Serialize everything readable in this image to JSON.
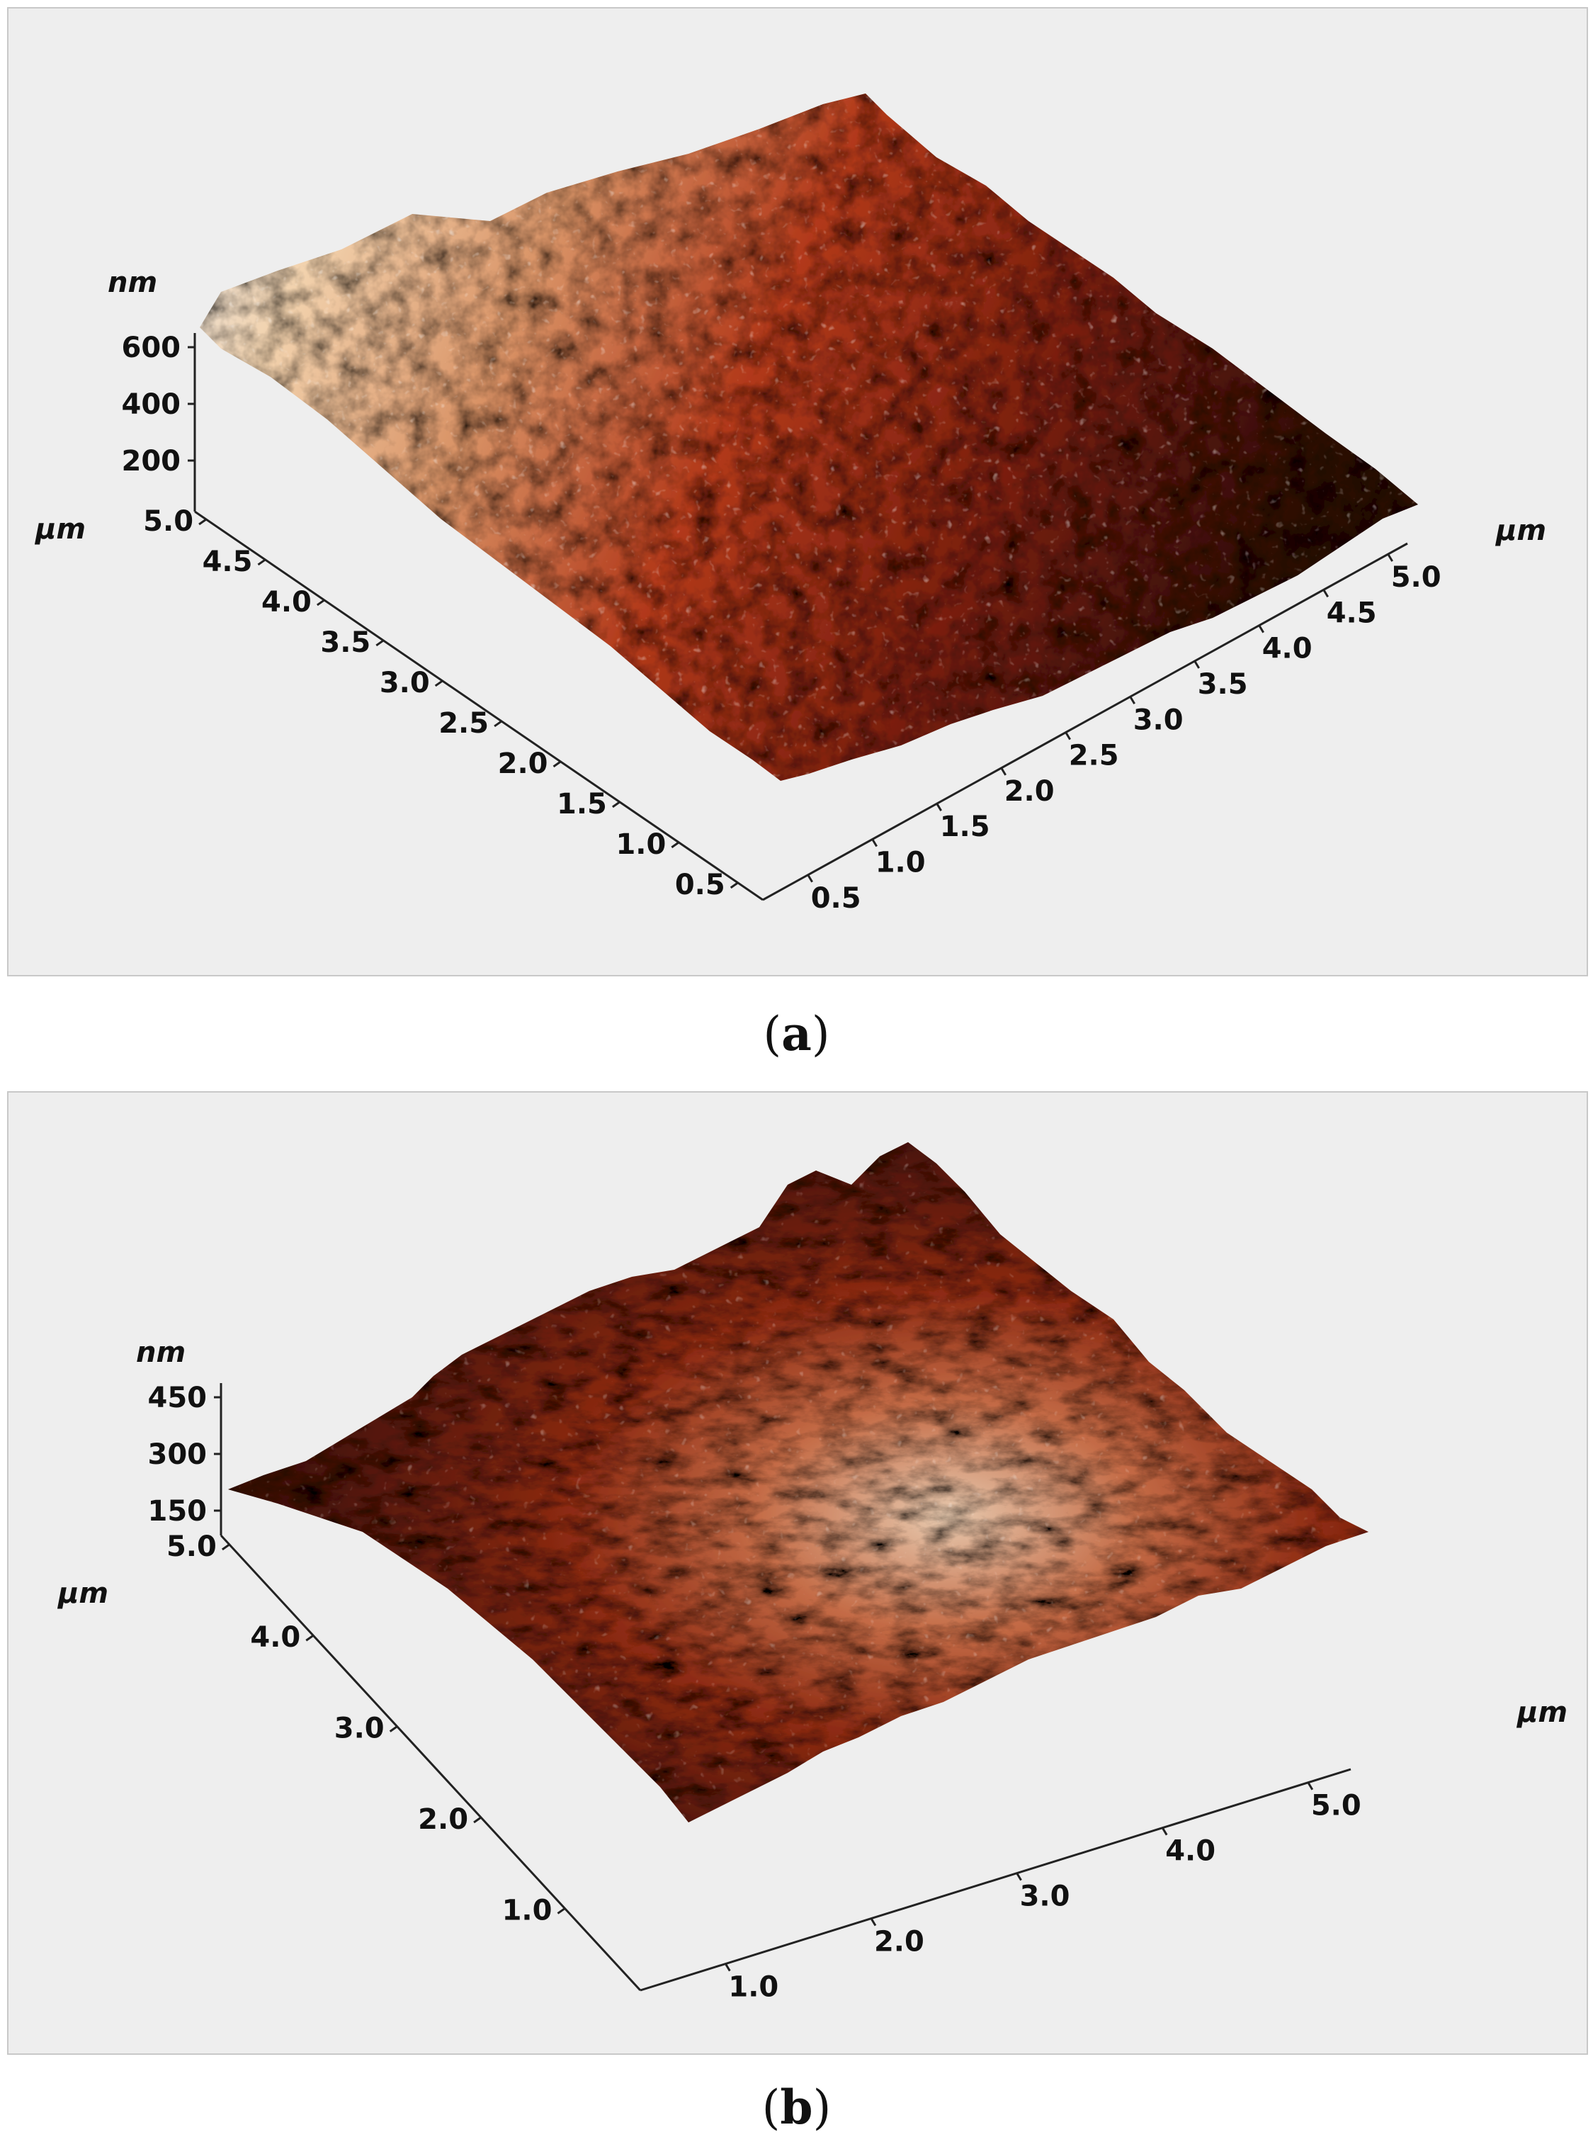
{
  "panels": [
    {
      "id": "a",
      "caption_letter": "a",
      "z_unit": "nm",
      "z_ticks": [
        "600",
        "400",
        "200"
      ],
      "left_unit": "µm",
      "left_ticks": [
        "5.0",
        "4.5",
        "4.0",
        "3.5",
        "3.0",
        "2.5",
        "2.0",
        "1.5",
        "1.0",
        "0.5"
      ],
      "right_unit": "µm",
      "right_ticks": [
        "0.5",
        "1.0",
        "1.5",
        "2.0",
        "2.5",
        "3.0",
        "3.5",
        "4.0",
        "4.5",
        "5.0"
      ],
      "colors": {
        "low": "#2a0d07",
        "mid": "#a83118",
        "high": "#f1c79a",
        "peak": "#d8d8d8"
      }
    },
    {
      "id": "b",
      "caption_letter": "b",
      "z_unit": "nm",
      "z_ticks": [
        "450",
        "300",
        "150"
      ],
      "left_unit": "µm",
      "left_ticks": [
        "5.0",
        "4.0",
        "3.0",
        "2.0",
        "1.0"
      ],
      "right_unit": "µm",
      "right_ticks": [
        "1.0",
        "2.0",
        "3.0",
        "4.0",
        "5.0"
      ],
      "colors": {
        "low": "#3a0e06",
        "mid": "#a33a1c",
        "high": "#eed2b8"
      }
    }
  ]
}
